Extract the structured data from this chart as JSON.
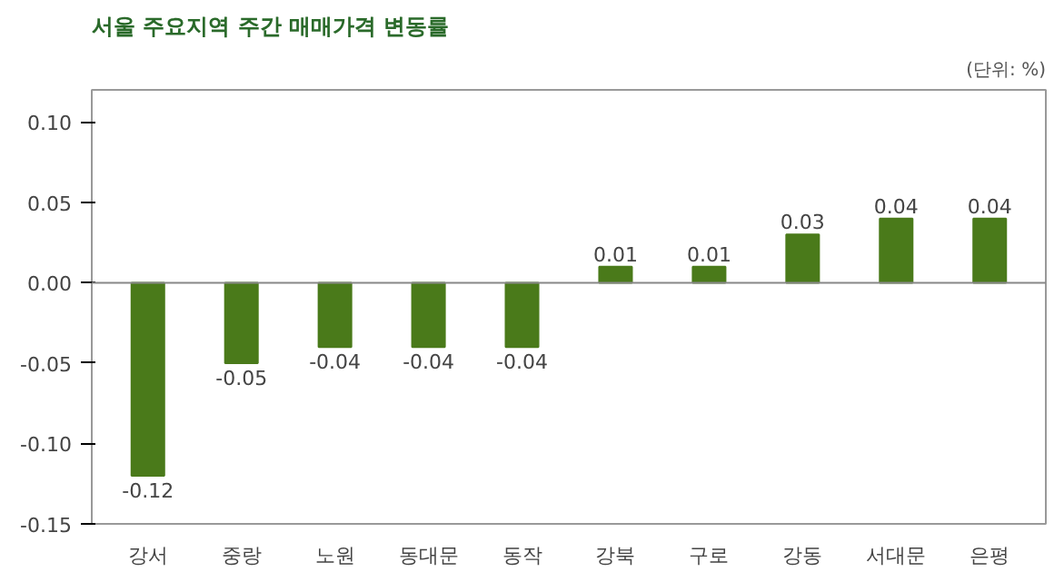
{
  "chart_data": {
    "type": "bar",
    "title": "서울 주요지역 주간 매매가격 변동률",
    "annotations": [
      "(단위: %)"
    ],
    "categories": [
      "강서",
      "중랑",
      "노원",
      "동대문",
      "동작",
      "강북",
      "구로",
      "강동",
      "서대문",
      "은평"
    ],
    "values": [
      -0.12,
      -0.05,
      -0.04,
      -0.04,
      -0.04,
      0.01,
      0.01,
      0.03,
      0.04,
      0.04
    ],
    "color": "#4a7a1a",
    "ylim": [
      -0.15,
      0.12
    ],
    "yticks": [
      {
        "value": -0.15,
        "label": "-0.15"
      },
      {
        "value": -0.1,
        "label": "-0.10"
      },
      {
        "value": -0.05,
        "label": "-0.05"
      },
      {
        "value": 0,
        "label": "0.00"
      },
      {
        "value": 0.05,
        "label": "0.05"
      },
      {
        "value": 0.1,
        "label": "0.10"
      }
    ],
    "ref_lines": [
      {
        "axis": "y",
        "value": 0,
        "color": "#888888"
      }
    ],
    "data_labels": true,
    "grid": false
  }
}
